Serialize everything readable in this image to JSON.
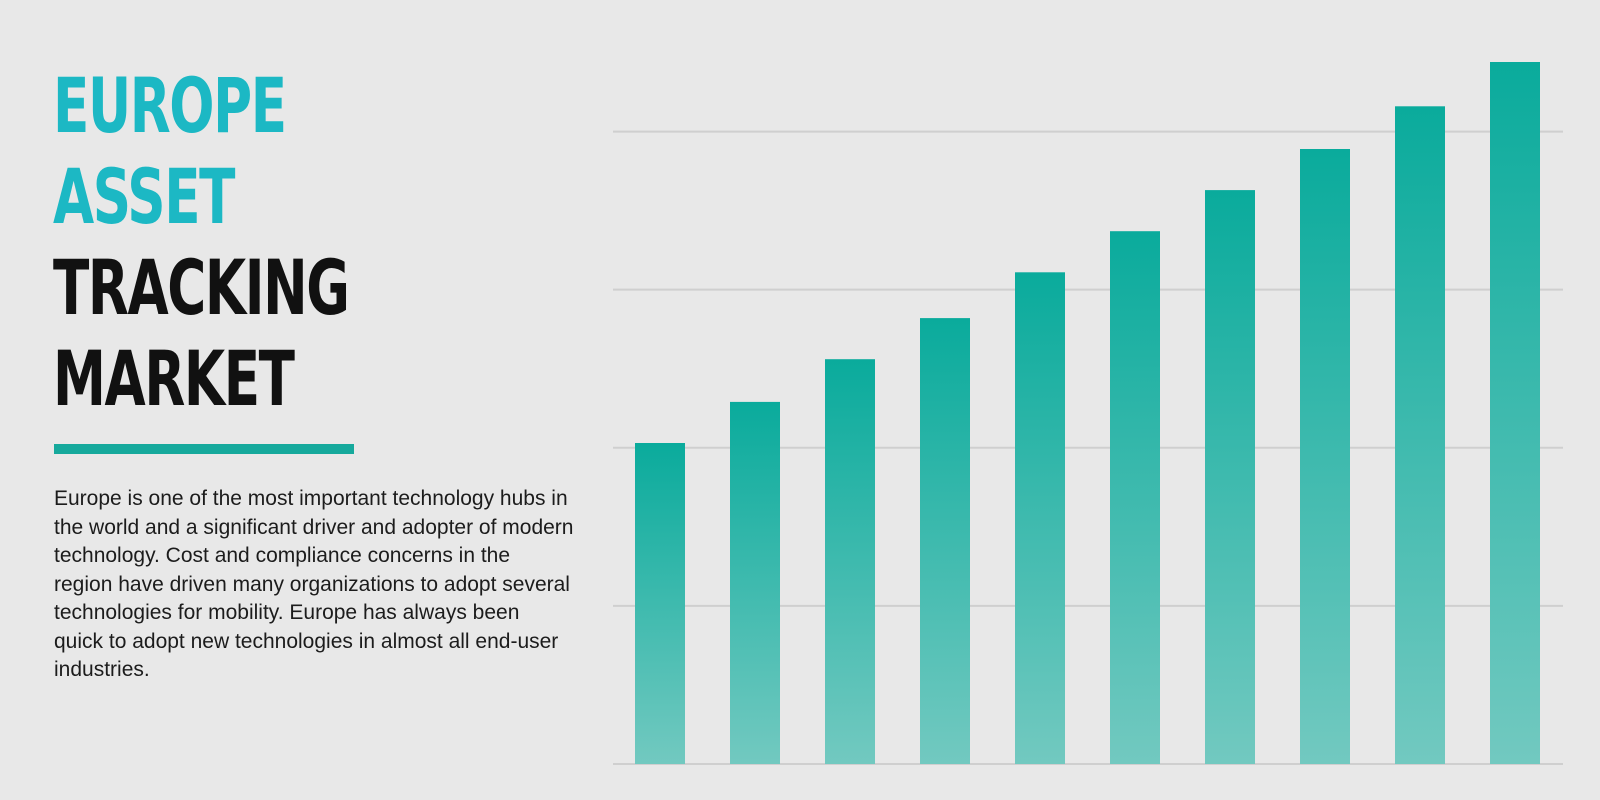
{
  "title": {
    "line1": "EUROPE",
    "line2": "ASSET",
    "line3": "TRACKING",
    "line4": "MARKET"
  },
  "description": "Europe is one of the most important technology hubs in the world and a significant driver and adopter of modern technology. Cost and compliance concerns in the region have driven many organizations to adopt several technologies for mobility. Europe has always been quick to adopt new technologies in almost all end-user industries.",
  "colors": {
    "accent_title": "#1cb8c4",
    "divider": "#16a99c",
    "bar_top": "#0aab9c",
    "bar_bottom": "#72c9c0",
    "gridline": "#cfcfcf",
    "background": "#e8e8e8"
  },
  "chart_data": {
    "type": "bar",
    "categories": [
      "",
      "",
      "",
      "",
      "",
      "",
      "",
      "",
      "",
      ""
    ],
    "values": [
      2.03,
      2.29,
      2.56,
      2.82,
      3.11,
      3.37,
      3.63,
      3.89,
      4.16,
      4.44
    ],
    "title": "",
    "xlabel": "",
    "ylabel": "",
    "ylim": [
      0,
      4.44
    ],
    "grid": true,
    "gridlines_at": [
      0,
      1,
      2,
      3,
      4
    ],
    "legend": "none"
  }
}
